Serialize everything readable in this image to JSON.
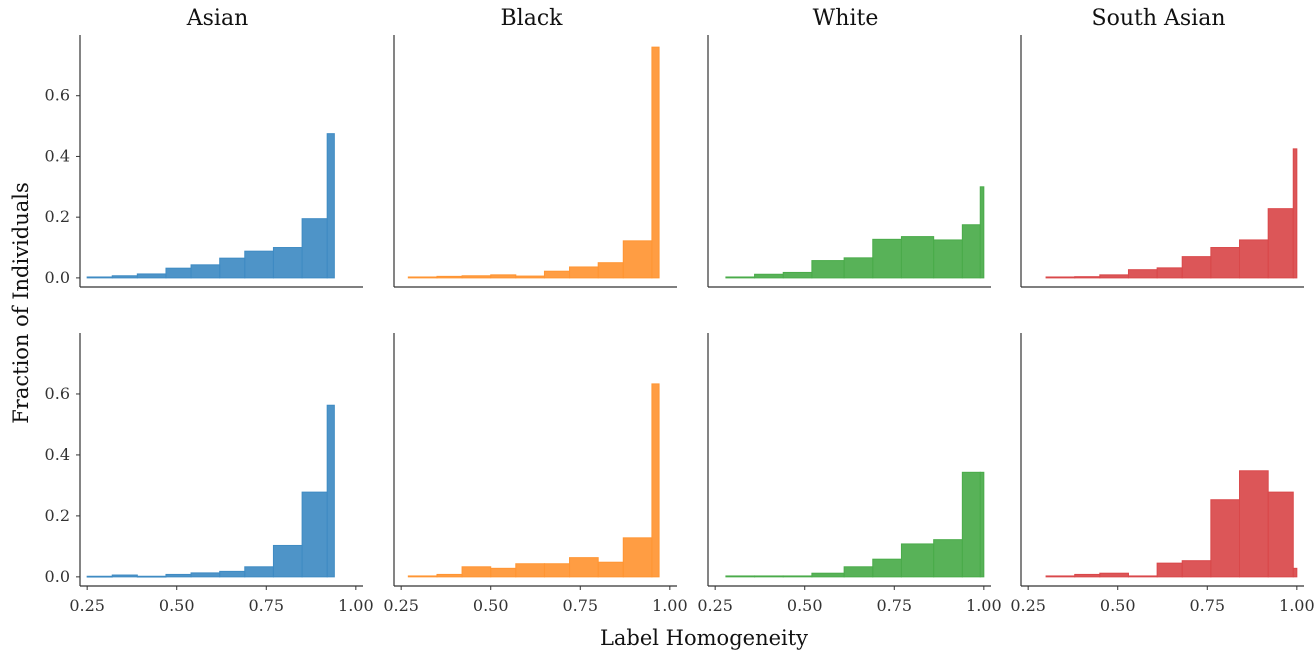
{
  "chart_data": {
    "type": "histogram-grid",
    "xlabel": "Label Homogeneity",
    "ylabel": "Fraction of Individuals",
    "xlim": [
      0.23,
      1.02
    ],
    "ylim": [
      -0.03,
      0.8
    ],
    "xticks": [
      "0.25",
      "0.50",
      "0.75",
      "1.00"
    ],
    "xtick_values": [
      0.25,
      0.5,
      0.75,
      1.0
    ],
    "yticks": [
      "0.0",
      "0.2",
      "0.4",
      "0.6"
    ],
    "ytick_values": [
      0.0,
      0.2,
      0.4,
      0.6
    ],
    "columns": [
      "Asian",
      "Black",
      "White",
      "South Asian"
    ],
    "colors": {
      "Asian": "#3f8bc3",
      "Black": "#ff9533",
      "White": "#4aab4a",
      "South Asian": "#d9484a"
    },
    "grid": false,
    "panels": [
      {
        "row": 0,
        "col": 0,
        "group": "Asian",
        "edges": [
          0.25,
          0.32,
          0.39,
          0.47,
          0.54,
          0.62,
          0.69,
          0.77,
          0.85,
          0.92,
          0.94
        ],
        "values": [
          0.003,
          0.007,
          0.013,
          0.032,
          0.043,
          0.065,
          0.088,
          0.1,
          0.195,
          0.475
        ]
      },
      {
        "row": 0,
        "col": 1,
        "group": "Black",
        "edges": [
          0.27,
          0.35,
          0.42,
          0.5,
          0.57,
          0.65,
          0.72,
          0.8,
          0.87,
          0.95,
          0.97
        ],
        "values": [
          0.003,
          0.005,
          0.007,
          0.01,
          0.006,
          0.022,
          0.036,
          0.05,
          0.122,
          0.76
        ]
      },
      {
        "row": 0,
        "col": 2,
        "group": "White",
        "edges": [
          0.28,
          0.36,
          0.44,
          0.52,
          0.61,
          0.69,
          0.77,
          0.86,
          0.94,
          0.99,
          1.0
        ],
        "values": [
          0.003,
          0.012,
          0.018,
          0.057,
          0.066,
          0.127,
          0.136,
          0.125,
          0.175,
          0.3
        ]
      },
      {
        "row": 0,
        "col": 3,
        "group": "South Asian",
        "edges": [
          0.3,
          0.38,
          0.45,
          0.53,
          0.61,
          0.68,
          0.76,
          0.84,
          0.92,
          0.99,
          1.0
        ],
        "values": [
          0.003,
          0.004,
          0.01,
          0.027,
          0.033,
          0.07,
          0.1,
          0.125,
          0.228,
          0.425
        ]
      },
      {
        "row": 1,
        "col": 0,
        "group": "Asian",
        "edges": [
          0.25,
          0.32,
          0.39,
          0.47,
          0.54,
          0.62,
          0.69,
          0.77,
          0.85,
          0.92,
          0.94
        ],
        "values": [
          0.002,
          0.006,
          0.002,
          0.008,
          0.013,
          0.018,
          0.033,
          0.103,
          0.278,
          0.563
        ]
      },
      {
        "row": 1,
        "col": 1,
        "group": "Black",
        "edges": [
          0.27,
          0.35,
          0.42,
          0.5,
          0.57,
          0.65,
          0.72,
          0.8,
          0.87,
          0.95,
          0.97
        ],
        "values": [
          0.003,
          0.008,
          0.033,
          0.028,
          0.043,
          0.043,
          0.063,
          0.048,
          0.128,
          0.633
        ]
      },
      {
        "row": 1,
        "col": 2,
        "group": "White",
        "edges": [
          0.28,
          0.36,
          0.44,
          0.52,
          0.61,
          0.69,
          0.77,
          0.86,
          0.94,
          0.99,
          1.0
        ],
        "values": [
          0.003,
          0.003,
          0.003,
          0.012,
          0.033,
          0.058,
          0.108,
          0.122,
          0.343,
          0.343
        ]
      },
      {
        "row": 1,
        "col": 3,
        "group": "South Asian",
        "edges": [
          0.3,
          0.38,
          0.45,
          0.53,
          0.61,
          0.68,
          0.76,
          0.84,
          0.92,
          0.99,
          1.0
        ],
        "values": [
          0.003,
          0.008,
          0.012,
          0.003,
          0.045,
          0.053,
          0.253,
          0.348,
          0.278,
          0.028
        ]
      }
    ]
  }
}
